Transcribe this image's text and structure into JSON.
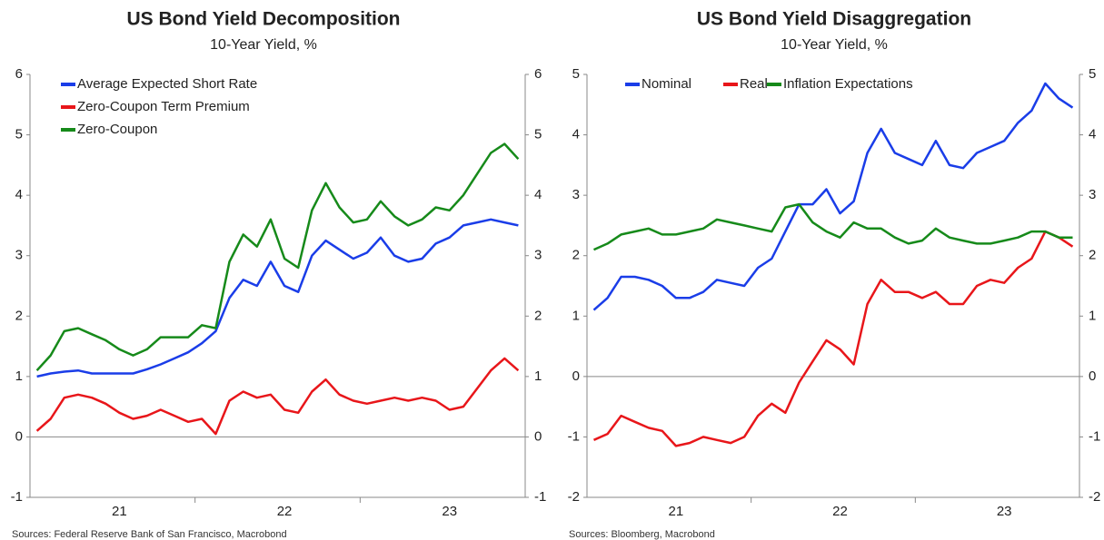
{
  "chart_data": [
    {
      "type": "line",
      "title": "US Bond Yield Decomposition",
      "subtitle": "10-Year Yield, %",
      "source": "Sources: Federal Reserve Bank of San Francisco, Macrobond",
      "legend": "top-left-stacked",
      "categories": [
        null,
        null,
        null,
        null,
        null,
        null,
        "21",
        null,
        null,
        null,
        null,
        null,
        null,
        null,
        null,
        null,
        null,
        null,
        "22",
        null,
        null,
        null,
        null,
        null,
        null,
        null,
        null,
        null,
        null,
        null,
        "23",
        null,
        null,
        null,
        null,
        null
      ],
      "ylim": [
        -1,
        6
      ],
      "yticks": [
        -1,
        0,
        1,
        2,
        3,
        4,
        5,
        6
      ],
      "y2lim": [
        -1,
        6
      ],
      "y2ticks": [
        -1,
        0,
        1,
        2,
        3,
        4,
        5,
        6
      ],
      "series": [
        {
          "name": "Average Expected Short Rate",
          "color": "#1a3de8",
          "values": [
            1.0,
            1.05,
            1.08,
            1.1,
            1.05,
            1.05,
            1.05,
            1.05,
            1.12,
            1.2,
            1.3,
            1.4,
            1.55,
            1.75,
            2.3,
            2.6,
            2.5,
            2.9,
            2.5,
            2.4,
            3.0,
            3.25,
            3.1,
            2.95,
            3.05,
            3.3,
            3.0,
            2.9,
            2.95,
            3.2,
            3.3,
            3.5,
            3.55,
            3.6,
            3.55,
            3.5
          ]
        },
        {
          "name": "Zero-Coupon Term Premium",
          "color": "#e8161a",
          "values": [
            0.1,
            0.3,
            0.65,
            0.7,
            0.65,
            0.55,
            0.4,
            0.3,
            0.35,
            0.45,
            0.35,
            0.25,
            0.3,
            0.05,
            0.6,
            0.75,
            0.65,
            0.7,
            0.45,
            0.4,
            0.75,
            0.95,
            0.7,
            0.6,
            0.55,
            0.6,
            0.65,
            0.6,
            0.65,
            0.6,
            0.45,
            0.5,
            0.8,
            1.1,
            1.3,
            1.1
          ]
        },
        {
          "name": "Zero-Coupon",
          "color": "#168a1a",
          "values": [
            1.1,
            1.35,
            1.75,
            1.8,
            1.7,
            1.6,
            1.45,
            1.35,
            1.45,
            1.65,
            1.65,
            1.65,
            1.85,
            1.8,
            2.9,
            3.35,
            3.15,
            3.6,
            2.95,
            2.8,
            3.75,
            4.2,
            3.8,
            3.55,
            3.6,
            3.9,
            3.65,
            3.5,
            3.6,
            3.8,
            3.75,
            4.0,
            4.35,
            4.7,
            4.85,
            4.6
          ]
        }
      ]
    },
    {
      "type": "line",
      "title": "US Bond Yield Disaggregation",
      "subtitle": "10-Year Yield, %",
      "source": "Sources: Bloomberg, Macrobond",
      "legend": "top-left-row",
      "categories": [
        null,
        null,
        null,
        null,
        null,
        null,
        "21",
        null,
        null,
        null,
        null,
        null,
        null,
        null,
        null,
        null,
        null,
        null,
        "22",
        null,
        null,
        null,
        null,
        null,
        null,
        null,
        null,
        null,
        null,
        null,
        "23",
        null,
        null,
        null,
        null,
        null
      ],
      "ylim": [
        -2,
        5
      ],
      "yticks": [
        -2,
        -1,
        0,
        1,
        2,
        3,
        4,
        5
      ],
      "y2lim": [
        -2,
        5
      ],
      "y2ticks": [
        -2,
        -1,
        0,
        1,
        2,
        3,
        4,
        5
      ],
      "series": [
        {
          "name": "Nominal",
          "color": "#1a3de8",
          "values": [
            1.1,
            1.3,
            1.65,
            1.65,
            1.6,
            1.5,
            1.3,
            1.3,
            1.4,
            1.6,
            1.55,
            1.5,
            1.8,
            1.95,
            2.4,
            2.85,
            2.85,
            3.1,
            2.7,
            2.9,
            3.7,
            4.1,
            3.7,
            3.6,
            3.5,
            3.9,
            3.5,
            3.45,
            3.7,
            3.8,
            3.9,
            4.2,
            4.4,
            4.85,
            4.6,
            4.45
          ]
        },
        {
          "name": "Real",
          "color": "#e8161a",
          "values": [
            -1.05,
            -0.95,
            -0.65,
            -0.75,
            -0.85,
            -0.9,
            -1.15,
            -1.1,
            -1.0,
            -1.05,
            -1.1,
            -1.0,
            -0.65,
            -0.45,
            -0.6,
            -0.1,
            0.25,
            0.6,
            0.45,
            0.2,
            1.2,
            1.6,
            1.4,
            1.4,
            1.3,
            1.4,
            1.2,
            1.2,
            1.5,
            1.6,
            1.55,
            1.8,
            1.95,
            2.4,
            2.3,
            2.15
          ]
        },
        {
          "name": "Inflation Expectations",
          "color": "#168a1a",
          "values": [
            2.1,
            2.2,
            2.35,
            2.4,
            2.45,
            2.35,
            2.35,
            2.4,
            2.45,
            2.6,
            2.55,
            2.5,
            2.45,
            2.4,
            2.8,
            2.85,
            2.55,
            2.4,
            2.3,
            2.55,
            2.45,
            2.45,
            2.3,
            2.2,
            2.25,
            2.45,
            2.3,
            2.25,
            2.2,
            2.2,
            2.25,
            2.3,
            2.4,
            2.4,
            2.3,
            2.3
          ]
        }
      ]
    }
  ]
}
